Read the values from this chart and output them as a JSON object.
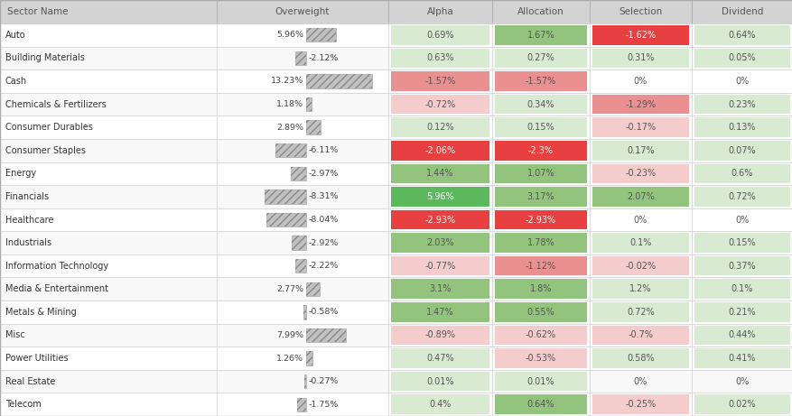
{
  "sectors": [
    "Auto",
    "Building Materials",
    "Cash",
    "Chemicals & Fertilizers",
    "Consumer Durables",
    "Consumer Staples",
    "Energy",
    "Financials",
    "Healthcare",
    "Industrials",
    "Information Technology",
    "Media & Entertainment",
    "Metals & Mining",
    "Misc",
    "Power Utilities",
    "Real Estate",
    "Telecom"
  ],
  "overweight": [
    5.96,
    -2.12,
    13.23,
    1.18,
    2.89,
    -6.11,
    -2.97,
    -8.31,
    -8.04,
    -2.92,
    -2.22,
    2.77,
    -0.58,
    7.99,
    1.26,
    -0.27,
    -1.75
  ],
  "alpha": [
    0.69,
    0.63,
    -1.57,
    -0.72,
    0.12,
    -2.06,
    1.44,
    5.96,
    -2.93,
    2.03,
    -0.77,
    3.1,
    1.47,
    -0.89,
    0.47,
    0.01,
    0.4
  ],
  "allocation": [
    1.67,
    0.27,
    -1.57,
    0.34,
    0.15,
    -2.3,
    1.07,
    3.17,
    -2.93,
    1.78,
    -1.12,
    1.8,
    0.55,
    -0.62,
    -0.53,
    0.01,
    0.64
  ],
  "selection": [
    -1.62,
    0.31,
    0.0,
    -1.29,
    -0.17,
    0.17,
    -0.23,
    2.07,
    0.0,
    0.1,
    -0.02,
    1.2,
    0.72,
    -0.7,
    0.58,
    0.0,
    -0.25
  ],
  "dividend": [
    0.64,
    0.05,
    0.0,
    0.23,
    0.13,
    0.07,
    0.6,
    0.72,
    0.0,
    0.15,
    0.37,
    0.1,
    0.21,
    0.44,
    0.41,
    0.0,
    0.02
  ],
  "alpha_labels": [
    "0.69%",
    "0.63%",
    "-1.57%",
    "-0.72%",
    "0.12%",
    "-2.06%",
    "1.44%",
    "5.96%",
    "-2.93%",
    "2.03%",
    "-0.77%",
    "3.1%",
    "1.47%",
    "-0.89%",
    "0.47%",
    "0.01%",
    "0.4%"
  ],
  "allocation_labels": [
    "1.67%",
    "0.27%",
    "-1.57%",
    "0.34%",
    "0.15%",
    "-2.3%",
    "1.07%",
    "3.17%",
    "-2.93%",
    "1.78%",
    "-1.12%",
    "1.8%",
    "0.55%",
    "-0.62%",
    "-0.53%",
    "0.01%",
    "0.64%"
  ],
  "selection_labels": [
    "-1.62%",
    "0.31%",
    "0%",
    "-1.29%",
    "-0.17%",
    "0.17%",
    "-0.23%",
    "2.07%",
    "0%",
    "0.1%",
    "-0.02%",
    "1.2%",
    "0.72%",
    "-0.7%",
    "0.58%",
    "0%",
    "-0.25%"
  ],
  "dividend_labels": [
    "0.64%",
    "0.05%",
    "0%",
    "0.23%",
    "0.13%",
    "0.07%",
    "0.6%",
    "0.72%",
    "0%",
    "0.15%",
    "0.37%",
    "0.1%",
    "0.21%",
    "0.44%",
    "0.41%",
    "0%",
    "0.02%"
  ],
  "overweight_labels": [
    "5.96%",
    "-2.12%",
    "13.23%",
    "1.18%",
    "2.89%",
    "-6.11%",
    "-2.97%",
    "-8.31%",
    "-8.04%",
    "-2.92%",
    "-2.22%",
    "2.77%",
    "-0.58%",
    "7.99%",
    "1.26%",
    "-0.27%",
    "-1.75%"
  ],
  "col_header_bg": "#d3d3d3",
  "col_header_fg": "#555555",
  "green_strong": "#5cb85c",
  "green_medium": "#93c47d",
  "green_light": "#d9ead3",
  "red_strong": "#e84040",
  "red_medium": "#ea9090",
  "red_light": "#f4cccc",
  "bar_fill": "#c0c0c0",
  "fig_width": 8.78,
  "fig_height": 4.61,
  "dpi": 100
}
